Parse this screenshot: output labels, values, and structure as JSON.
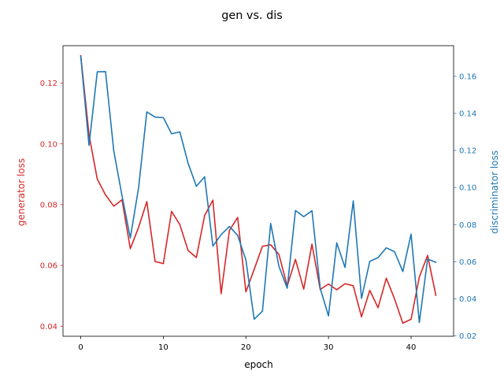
{
  "chart_data": {
    "type": "line",
    "title": "gen vs. dis",
    "xlabel": "epoch",
    "xlim": [
      -2.15,
      45.15
    ],
    "x_ticks": [
      0,
      10,
      20,
      30,
      40
    ],
    "grid": false,
    "legend": "none",
    "colors": {
      "left": "#d62728",
      "right": "#1f77b4",
      "axes": "#000000",
      "background": "#ffffff"
    },
    "x": [
      0,
      1,
      2,
      3,
      4,
      5,
      6,
      7,
      8,
      9,
      10,
      11,
      12,
      13,
      14,
      15,
      16,
      17,
      18,
      19,
      20,
      21,
      22,
      23,
      24,
      25,
      26,
      27,
      28,
      29,
      30,
      31,
      32,
      33,
      34,
      35,
      36,
      37,
      38,
      39,
      40,
      41,
      42,
      43
    ],
    "series": [
      {
        "name": "generator loss",
        "axis": "left",
        "ylabel": "generator loss",
        "ylim": [
          0.0367,
          0.1323
        ],
        "y_ticks": [
          0.04,
          0.06,
          0.08,
          0.1,
          0.12
        ],
        "y_tick_labels": [
          "0.04",
          "0.06",
          "0.08",
          "0.10",
          "0.12"
        ],
        "values": [
          0.129,
          0.103,
          0.0884,
          0.0832,
          0.0795,
          0.0816,
          0.0655,
          0.0725,
          0.081,
          0.0613,
          0.0606,
          0.0778,
          0.0734,
          0.0649,
          0.0626,
          0.0764,
          0.0815,
          0.0507,
          0.0715,
          0.0758,
          0.0513,
          0.0587,
          0.0663,
          0.0668,
          0.0636,
          0.0532,
          0.062,
          0.0522,
          0.067,
          0.0521,
          0.0539,
          0.052,
          0.054,
          0.0533,
          0.0431,
          0.0518,
          0.0461,
          0.0558,
          0.049,
          0.041,
          0.0423,
          0.0562,
          0.0633,
          0.0502
        ]
      },
      {
        "name": "discriminator loss",
        "axis": "right",
        "ylabel": "discriminator loss",
        "ylim": [
          0.0198,
          0.1765
        ],
        "y_ticks": [
          0.02,
          0.04,
          0.06,
          0.08,
          0.1,
          0.12,
          0.14,
          0.16
        ],
        "y_tick_labels": [
          "0.02",
          "0.04",
          "0.06",
          "0.08",
          "0.10",
          "0.12",
          "0.14",
          "0.16"
        ],
        "values": [
          0.1707,
          0.1227,
          0.1624,
          0.1625,
          0.1197,
          0.0955,
          0.0728,
          0.0998,
          0.1408,
          0.138,
          0.1377,
          0.129,
          0.13,
          0.1131,
          0.1007,
          0.1058,
          0.0684,
          0.0746,
          0.079,
          0.0742,
          0.0609,
          0.029,
          0.0333,
          0.0806,
          0.0575,
          0.0457,
          0.0876,
          0.0843,
          0.0875,
          0.0456,
          0.0308,
          0.0702,
          0.0569,
          0.0928,
          0.0402,
          0.0602,
          0.0622,
          0.0675,
          0.0654,
          0.0547,
          0.0749,
          0.0272,
          0.0614,
          0.0597
        ]
      }
    ]
  }
}
